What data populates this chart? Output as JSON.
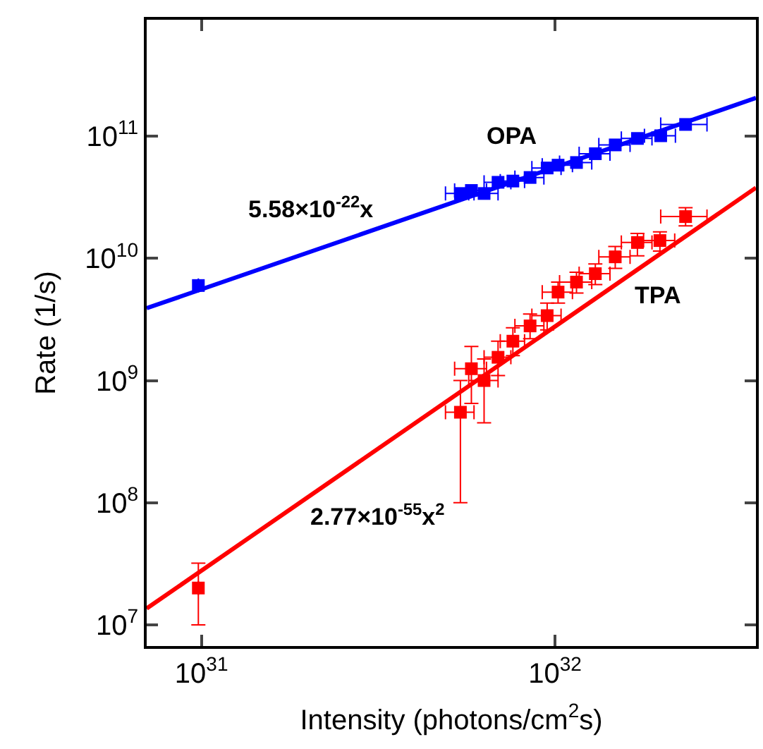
{
  "chart_data": {
    "type": "scatter",
    "xlabel": "Intensity (photons/cm$^{2}$s)",
    "ylabel": "Rate (1/s)",
    "log": "xy",
    "marker": "square",
    "xlim": [
      7e+30,
      3.7e+32
    ],
    "ylim": [
      6700000.0,
      900000000000.0
    ],
    "xticks": [
      {
        "value": 1e+31,
        "label": "10$^{31}$"
      },
      {
        "value": 1e+32,
        "label": "10$^{32}$"
      }
    ],
    "yticks": [
      {
        "value": 10000000.0,
        "label": "10$^{7}$"
      },
      {
        "value": 100000000.0,
        "label": "10$^{8}$"
      },
      {
        "value": 1000000000.0,
        "label": "10$^{9}$"
      },
      {
        "value": 10000000000.0,
        "label": "10$^{10}$"
      },
      {
        "value": 100000000000.0,
        "label": "10$^{11}$"
      }
    ],
    "series": [
      {
        "type": "line",
        "marker": "none",
        "color": "#0000ff",
        "x": [
          7e+30,
          3.7e+32
        ],
        "values": [
          3910000000.0,
          206000000000.0
        ]
      },
      {
        "type": "line",
        "marker": "none",
        "color": "#ff0000",
        "x": [
          7e+30,
          3.7e+32
        ],
        "values": [
          13600000.0,
          37900000000.0
        ]
      },
      {
        "color": "#0000ff",
        "x": [
          9.8e+30,
          5.4e+31,
          5.8e+31,
          6.3e+31,
          6.9e+31,
          7.6e+31,
          8.5e+31,
          9.5e+31,
          1.02e+32,
          1.15e+32,
          1.3e+32,
          1.48e+32,
          1.71e+32,
          1.99e+32,
          2.34e+32
        ],
        "values": [
          6000000000.0,
          34000000000.0,
          36000000000.0,
          34000000000.0,
          42000000000.0,
          43000000000.0,
          46000000000.0,
          55000000000.0,
          58000000000.0,
          61000000000.0,
          72000000000.0,
          85000000000.0,
          96000000000.0,
          101000000000.0,
          125000000000.0
        ],
        "xerrors": [
          null,
          5e+30,
          6e+30,
          6e+30,
          6e+30,
          6e+30,
          8e+30,
          9e+30,
          1e+31,
          1.2e+31,
          1.3e+31,
          1.5e+31,
          1.7e+31,
          2e+31,
          3.5e+31
        ]
      },
      {
        "color": "#ff0000",
        "x": [
          9.8e+30,
          5.4e+31,
          5.8e+31,
          6.3e+31,
          6.9e+31,
          7.6e+31,
          8.5e+31,
          9.5e+31,
          1.02e+32,
          1.15e+32,
          1.3e+32,
          1.48e+32,
          1.71e+32,
          1.98e+32,
          2.34e+32
        ],
        "values": [
          20000000.0,
          550000000.0,
          1250000000.0,
          1000000000.0,
          1550000000.0,
          2100000000.0,
          2800000000.0,
          3400000000.0,
          5300000000.0,
          6400000000.0,
          7500000000.0,
          10300000000.0,
          13500000000.0,
          14000000000.0,
          22000000000.0
        ],
        "errors": [
          [
            10000000.0,
            32000000.0
          ],
          [
            100000000.0,
            1000000000.0
          ],
          [
            650000000.0,
            1900000000.0
          ],
          [
            450000000.0,
            1500000000.0
          ],
          [
            1100000000.0,
            2100000000.0
          ],
          [
            1600000000.0,
            2700000000.0
          ],
          [
            2200000000.0,
            3500000000.0
          ],
          [
            2600000000.0,
            4300000000.0
          ],
          [
            4300000000.0,
            6400000000.0
          ],
          [
            5200000000.0,
            7700000000.0
          ],
          [
            6100000000.0,
            9000000000.0
          ],
          [
            8300000000.0,
            12500000000.0
          ],
          [
            10500000000.0,
            16000000000.0
          ],
          [
            11500000000.0,
            16500000000.0
          ],
          [
            18500000000.0,
            26000000000.0
          ]
        ],
        "xerrors": [
          null,
          5e+30,
          6e+30,
          6e+30,
          6e+30,
          6e+30,
          8e+30,
          9e+30,
          1e+31,
          1.2e+31,
          1.3e+31,
          1.5e+31,
          1.7e+31,
          2e+31,
          3.5e+31
        ]
      }
    ],
    "annotations": [
      "OPA",
      "TPA",
      "5.58×10$^{-22}$x",
      "2.77×10$^{-55}$x$^{2}$"
    ]
  }
}
